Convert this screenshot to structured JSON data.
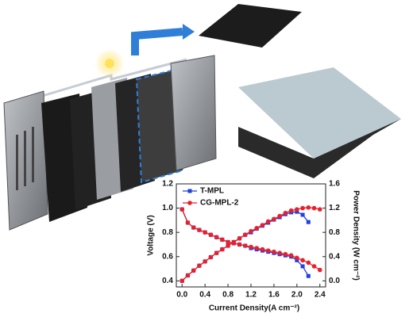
{
  "chart_data": {
    "type": "line",
    "x": [
      0,
      0.1,
      0.2,
      0.3,
      0.4,
      0.5,
      0.6,
      0.7,
      0.8,
      0.9,
      1.0,
      1.1,
      1.2,
      1.3,
      1.4,
      1.5,
      1.6,
      1.7,
      1.8,
      1.9,
      2.0,
      2.1,
      2.2,
      2.3,
      2.4
    ],
    "series": [
      {
        "name": "T-MPL",
        "color": "#1f3fe0",
        "marker": "square",
        "values": [
          0.99,
          0.88,
          0.84,
          0.82,
          0.8,
          0.78,
          0.76,
          0.74,
          0.72,
          0.71,
          0.7,
          0.69,
          0.67,
          0.66,
          0.65,
          0.64,
          0.63,
          0.62,
          0.61,
          0.6,
          0.57,
          0.52,
          0.44,
          null,
          null
        ],
        "power_values": [
          0,
          0.09,
          0.17,
          0.25,
          0.32,
          0.39,
          0.46,
          0.52,
          0.58,
          0.64,
          0.7,
          0.76,
          0.8,
          0.86,
          0.91,
          0.96,
          1.01,
          1.05,
          1.1,
          1.13,
          1.14,
          1.09,
          0.97,
          null,
          null
        ]
      },
      {
        "name": "CG-MPL-2",
        "color": "#e8202a",
        "marker": "circle",
        "values": [
          0.99,
          0.88,
          0.84,
          0.82,
          0.8,
          0.78,
          0.76,
          0.74,
          0.72,
          0.71,
          0.7,
          0.69,
          0.68,
          0.67,
          0.66,
          0.65,
          0.64,
          0.63,
          0.62,
          0.61,
          0.59,
          0.57,
          0.55,
          0.52,
          0.49
        ],
        "power_values": [
          0,
          0.09,
          0.17,
          0.25,
          0.32,
          0.39,
          0.46,
          0.52,
          0.58,
          0.64,
          0.7,
          0.76,
          0.82,
          0.87,
          0.92,
          0.98,
          1.02,
          1.07,
          1.12,
          1.16,
          1.18,
          1.2,
          1.21,
          1.2,
          1.18
        ]
      }
    ],
    "xlabel": "Current Density(A cm⁻²)",
    "ylabel": "Voltage (V)",
    "y2label": "Power Density (W cm⁻²)",
    "xlim": [
      -0.1,
      2.5
    ],
    "ylim": [
      0.35,
      1.2
    ],
    "y2lim": [
      -0.1,
      1.6
    ],
    "xticks": [
      {
        "value": 0,
        "label": "0.0"
      },
      0.4,
      0.8,
      1.2,
      1.6,
      {
        "value": 2.0,
        "label": "2.0"
      },
      2.4
    ],
    "yticks": [
      0.4,
      0.6,
      0.8,
      {
        "value": 1.0,
        "label": "1.0"
      },
      1.2
    ],
    "y2ticks": [
      {
        "value": 0,
        "label": "0.0"
      },
      0.4,
      0.8,
      1.2,
      1.6
    ],
    "legend": "upper-left"
  }
}
